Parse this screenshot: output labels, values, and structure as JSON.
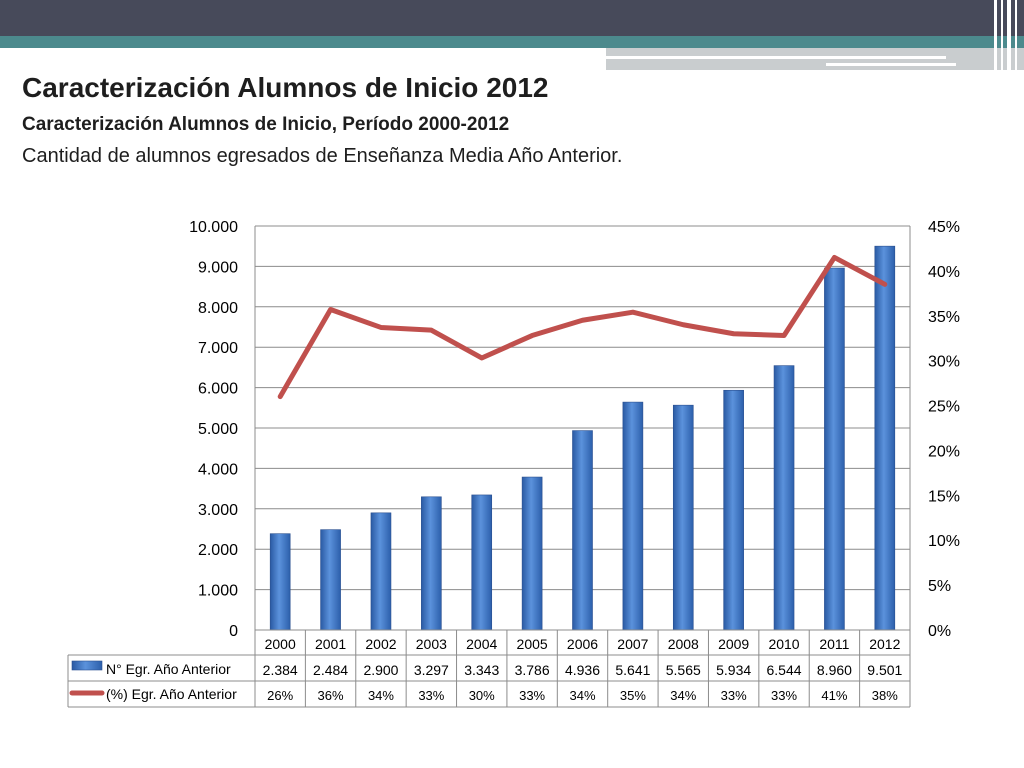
{
  "header": {
    "title": "Caracterización Alumnos de Inicio 2012",
    "subtitle": "Caracterización Alumnos de Inicio, Período 2000-2012",
    "description": "Cantidad de alumnos egresados de Enseñanza Media Año Anterior."
  },
  "colors": {
    "top_bar": "#474a5a",
    "teal_bar": "#4c8a8d",
    "bar_fill": "#3a74c4",
    "line": "#c0504d"
  },
  "chart_data": {
    "type": "bar",
    "categories": [
      "2000",
      "2001",
      "2002",
      "2003",
      "2004",
      "2005",
      "2006",
      "2007",
      "2008",
      "2009",
      "2010",
      "2011",
      "2012"
    ],
    "series": [
      {
        "name": "N° Egr. Año Anterior",
        "kind": "bar",
        "axis": "left",
        "values": [
          2384,
          2484,
          2900,
          3297,
          3343,
          3786,
          4936,
          5641,
          5565,
          5934,
          6544,
          8960,
          9501
        ],
        "labels": [
          "2.384",
          "2.484",
          "2.900",
          "3.297",
          "3.343",
          "3.786",
          "4.936",
          "5.641",
          "5.565",
          "5.934",
          "6.544",
          "8.960",
          "9.501"
        ]
      },
      {
        "name": "(%) Egr. Año Anterior",
        "kind": "line",
        "axis": "right",
        "values": [
          0.26,
          0.357,
          0.337,
          0.334,
          0.303,
          0.328,
          0.345,
          0.354,
          0.34,
          0.33,
          0.328,
          0.415,
          0.385
        ],
        "labels": [
          "26%",
          "36%",
          "34%",
          "33%",
          "30%",
          "33%",
          "34%",
          "35%",
          "34%",
          "33%",
          "33%",
          "41%",
          "38%"
        ]
      }
    ],
    "y_left": {
      "min": 0,
      "max": 10000,
      "ticks": [
        "0",
        "1.000",
        "2.000",
        "3.000",
        "4.000",
        "5.000",
        "6.000",
        "7.000",
        "8.000",
        "9.000",
        "10.000"
      ]
    },
    "y_right": {
      "min": 0,
      "max": 0.45,
      "ticks": [
        "0%",
        "5%",
        "10%",
        "15%",
        "20%",
        "25%",
        "30%",
        "35%",
        "40%",
        "45%"
      ]
    },
    "grid": true,
    "legend": "data table below chart"
  }
}
